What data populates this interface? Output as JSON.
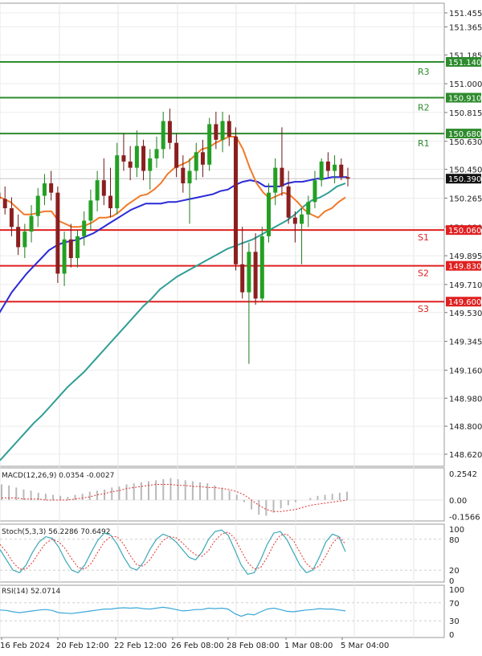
{
  "chart_data": {
    "type": "candlestick",
    "main": {
      "y_ticks": [
        "151.455",
        "151.365",
        "151.185",
        "151.000",
        "150.815",
        "150.630",
        "150.450",
        "150.265",
        "150.080",
        "149.895",
        "149.710",
        "149.530",
        "149.345",
        "149.160",
        "148.980",
        "148.800",
        "148.620"
      ],
      "y_min": 148.55,
      "y_max": 151.5,
      "last_price": 150.39,
      "last_price_label": "150.390",
      "levels": [
        {
          "name": "R3",
          "value": 151.14,
          "label": "151.140",
          "color": "#2e8b2e"
        },
        {
          "name": "R2",
          "value": 150.91,
          "label": "150.910",
          "color": "#2e8b2e"
        },
        {
          "name": "R1",
          "value": 150.68,
          "label": "150.680",
          "color": "#2e8b2e"
        },
        {
          "name": "S1",
          "value": 150.06,
          "label": "150.060",
          "color": "#e02020"
        },
        {
          "name": "S2",
          "value": 149.83,
          "label": "149.830",
          "color": "#e02020"
        },
        {
          "name": "S3",
          "value": 149.6,
          "label": "149.600",
          "color": "#e02020"
        }
      ],
      "candles": [
        [
          150.3,
          150.4,
          150.22,
          150.26
        ],
        [
          150.26,
          150.34,
          150.16,
          150.2
        ],
        [
          150.2,
          150.27,
          150.02,
          150.08
        ],
        [
          150.08,
          150.16,
          149.9,
          149.95
        ],
        [
          149.95,
          150.1,
          149.88,
          150.05
        ],
        [
          150.05,
          150.22,
          149.98,
          150.15
        ],
        [
          150.15,
          150.33,
          150.08,
          150.28
        ],
        [
          150.28,
          150.42,
          150.22,
          150.36
        ],
        [
          150.36,
          150.44,
          150.25,
          150.3
        ],
        [
          150.3,
          150.34,
          149.72,
          149.78
        ],
        [
          149.78,
          150.05,
          149.7,
          150.0
        ],
        [
          150.0,
          150.1,
          149.82,
          149.88
        ],
        [
          149.88,
          150.06,
          149.82,
          150.02
        ],
        [
          150.02,
          150.18,
          149.96,
          150.12
        ],
        [
          150.12,
          150.32,
          150.06,
          150.25
        ],
        [
          150.25,
          150.44,
          150.18,
          150.38
        ],
        [
          150.38,
          150.52,
          150.22,
          150.28
        ],
        [
          150.28,
          150.46,
          150.14,
          150.2
        ],
        [
          150.2,
          150.62,
          150.16,
          150.54
        ],
        [
          150.54,
          150.68,
          150.44,
          150.5
        ],
        [
          150.5,
          150.6,
          150.38,
          150.46
        ],
        [
          150.46,
          150.7,
          150.4,
          150.6
        ],
        [
          150.6,
          150.64,
          150.38,
          150.44
        ],
        [
          150.44,
          150.58,
          150.32,
          150.52
        ],
        [
          150.52,
          150.66,
          150.46,
          150.58
        ],
        [
          150.58,
          150.82,
          150.52,
          150.76
        ],
        [
          150.76,
          150.84,
          150.58,
          150.62
        ],
        [
          150.62,
          150.68,
          150.4,
          150.46
        ],
        [
          150.46,
          150.54,
          150.3,
          150.36
        ],
        [
          150.36,
          150.52,
          150.1,
          150.44
        ],
        [
          150.44,
          150.62,
          150.38,
          150.56
        ],
        [
          150.56,
          150.64,
          150.4,
          150.48
        ],
        [
          150.48,
          150.78,
          150.44,
          150.74
        ],
        [
          150.74,
          150.82,
          150.58,
          150.64
        ],
        [
          150.64,
          150.82,
          150.56,
          150.76
        ],
        [
          150.76,
          150.8,
          150.6,
          150.66
        ],
        [
          150.66,
          150.72,
          149.8,
          149.84
        ],
        [
          149.84,
          150.08,
          149.62,
          149.66
        ],
        [
          149.66,
          149.98,
          149.2,
          149.92
        ],
        [
          149.92,
          150.04,
          149.58,
          149.62
        ],
        [
          149.62,
          150.08,
          149.6,
          150.02
        ],
        [
          150.02,
          150.36,
          149.98,
          150.3
        ],
        [
          150.3,
          150.52,
          150.22,
          150.46
        ],
        [
          150.46,
          150.72,
          150.28,
          150.34
        ],
        [
          150.34,
          150.44,
          150.1,
          150.14
        ],
        [
          150.14,
          150.18,
          149.98,
          150.1
        ],
        [
          150.1,
          150.2,
          149.84,
          150.16
        ],
        [
          150.16,
          150.28,
          150.08,
          150.24
        ],
        [
          150.24,
          150.44,
          150.2,
          150.38
        ],
        [
          150.38,
          150.52,
          150.34,
          150.5
        ],
        [
          150.5,
          150.56,
          150.4,
          150.44
        ],
        [
          150.44,
          150.54,
          150.36,
          150.48
        ],
        [
          150.48,
          150.52,
          150.38,
          150.4
        ],
        [
          150.4,
          150.46,
          150.34,
          150.39
        ]
      ],
      "ma_fast": [
        150.28,
        150.26,
        150.24,
        150.2,
        150.16,
        150.16,
        150.17,
        150.18,
        150.18,
        150.12,
        150.1,
        150.08,
        150.08,
        150.09,
        150.11,
        150.14,
        150.14,
        150.15,
        150.18,
        150.22,
        150.25,
        150.28,
        150.29,
        150.32,
        150.36,
        150.42,
        150.46,
        150.48,
        150.5,
        150.54,
        150.58,
        150.59,
        150.62,
        150.64,
        150.66,
        150.66,
        150.58,
        150.46,
        150.36,
        150.3,
        150.26,
        150.28,
        150.3,
        150.28,
        150.24,
        150.19,
        150.16,
        150.14,
        150.18,
        150.2,
        150.24,
        150.27
      ],
      "ma_mid": [
        149.5,
        149.58,
        149.66,
        149.72,
        149.78,
        149.83,
        149.88,
        149.93,
        149.96,
        149.98,
        149.99,
        150.0,
        150.02,
        150.04,
        150.07,
        150.1,
        150.13,
        150.16,
        150.19,
        150.21,
        150.23,
        150.23,
        150.23,
        150.24,
        150.24,
        150.25,
        150.26,
        150.27,
        150.28,
        150.29,
        150.31,
        150.32,
        150.35,
        150.37,
        150.38,
        150.37,
        150.34,
        150.34,
        150.34,
        150.36,
        150.37,
        150.37,
        150.38,
        150.39,
        150.39,
        150.4,
        150.4,
        150.4
      ],
      "ma_slow": [
        148.58,
        148.64,
        148.7,
        148.76,
        148.82,
        148.87,
        148.93,
        148.99,
        149.05,
        149.1,
        149.15,
        149.21,
        149.27,
        149.33,
        149.39,
        149.45,
        149.51,
        149.57,
        149.62,
        149.68,
        149.72,
        149.76,
        149.79,
        149.82,
        149.85,
        149.88,
        149.91,
        149.94,
        149.96,
        149.98,
        150.0,
        150.03,
        150.06,
        150.09,
        150.12,
        150.16,
        150.21,
        150.25,
        150.27,
        150.3,
        150.34,
        150.36,
        150.38,
        150.4,
        150.42,
        150.45,
        150.48,
        150.51,
        150.55,
        150.62,
        150.68,
        150.74,
        150.8,
        150.86,
        150.92,
        150.98,
        151.05,
        151.12,
        151.2,
        151.28
      ]
    },
    "macd": {
      "label": "MACD(12,26,9) 0.0354 -0.0027",
      "y_ticks": [
        "0.2542",
        "0.00",
        "-0.1566"
      ],
      "hist": [
        0.15,
        0.14,
        0.12,
        0.1,
        0.09,
        0.07,
        0.06,
        0.05,
        0.04,
        0.03,
        0.05,
        0.06,
        0.08,
        0.09,
        0.1,
        0.12,
        0.13,
        0.15,
        0.16,
        0.17,
        0.18,
        0.19,
        0.2,
        0.21,
        0.2,
        0.19,
        0.18,
        0.17,
        0.16,
        0.14,
        0.12,
        0.09,
        0.05,
        -0.02,
        -0.09,
        -0.14,
        -0.15,
        -0.12,
        -0.08,
        -0.05,
        -0.02,
        0.0,
        0.02,
        0.04,
        0.05,
        0.06,
        0.07,
        0.08
      ],
      "signal": [
        0.02,
        0.02,
        0.02,
        0.01,
        0.01,
        0.01,
        0.0,
        0.0,
        0.0,
        0.0,
        0.01,
        0.02,
        0.03,
        0.05,
        0.06,
        0.08,
        0.09,
        0.11,
        0.12,
        0.13,
        0.14,
        0.15,
        0.15,
        0.15,
        0.14,
        0.14,
        0.13,
        0.13,
        0.12,
        0.12,
        0.11,
        0.1,
        0.08,
        0.05,
        0.0,
        -0.05,
        -0.09,
        -0.11,
        -0.11,
        -0.1,
        -0.09,
        -0.07,
        -0.05,
        -0.04,
        -0.03,
        -0.02,
        -0.01,
        0.0
      ]
    },
    "stoch": {
      "label": "Stoch(5,3,3) 56.2286 70.6492",
      "y_ticks": [
        "100",
        "80",
        "20",
        "0"
      ],
      "k": [
        60,
        40,
        20,
        15,
        30,
        55,
        75,
        85,
        82,
        65,
        40,
        20,
        15,
        30,
        55,
        78,
        92,
        88,
        70,
        45,
        25,
        20,
        35,
        60,
        80,
        90,
        85,
        75,
        60,
        45,
        40,
        55,
        80,
        95,
        98,
        88,
        60,
        30,
        12,
        15,
        40,
        70,
        92,
        95,
        80,
        55,
        30,
        15,
        20,
        45,
        75,
        90,
        85,
        56
      ],
      "d": [
        70,
        55,
        35,
        22,
        22,
        35,
        55,
        72,
        80,
        75,
        62,
        42,
        25,
        22,
        33,
        55,
        75,
        85,
        85,
        70,
        48,
        30,
        28,
        40,
        60,
        78,
        85,
        83,
        73,
        60,
        50,
        47,
        58,
        78,
        90,
        94,
        82,
        58,
        35,
        22,
        25,
        45,
        70,
        88,
        90,
        78,
        55,
        33,
        22,
        28,
        48,
        72,
        85,
        71
      ]
    },
    "rsi": {
      "label": "RSI(14) 52.0714",
      "y_ticks": [
        "100",
        "70",
        "30",
        "0"
      ],
      "values": [
        54,
        53,
        50,
        48,
        50,
        52,
        54,
        55,
        53,
        48,
        47,
        46,
        48,
        50,
        52,
        54,
        56,
        56,
        58,
        59,
        58,
        59,
        57,
        56,
        58,
        60,
        58,
        55,
        52,
        53,
        55,
        55,
        58,
        57,
        58,
        56,
        46,
        40,
        45,
        43,
        50,
        56,
        58,
        55,
        51,
        50,
        52,
        54,
        55,
        57,
        56,
        56,
        54,
        52
      ]
    },
    "x_labels": [
      "16 Feb 2024",
      "20 Feb 12:00",
      "22 Feb 12:00",
      "26 Feb 08:00",
      "28 Feb 08:00",
      "1 Mar 08:00",
      "5 Mar 04:00"
    ]
  }
}
